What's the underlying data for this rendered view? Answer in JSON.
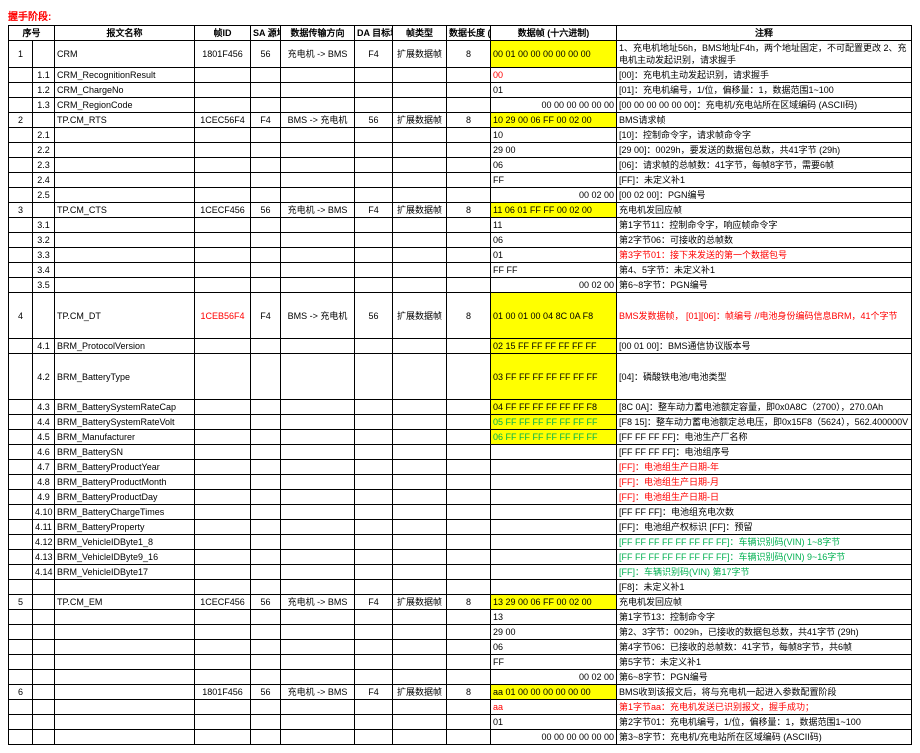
{
  "title": "握手阶段:",
  "headers": {
    "seq": "序号",
    "name": "报文名称",
    "fid": "帧ID",
    "sa": "SA\n源地址",
    "dir": "数据传输方向",
    "da": "DA\n目标地址",
    "ftype": "帧类型",
    "len": "数据长度\n(字节)",
    "hex": "数据帧\n(十六进制)",
    "note": "注释"
  },
  "rows": [
    {
      "seq": "1",
      "sub": "",
      "name": "CRM",
      "fid": "1801F456",
      "sa": "56",
      "dir": "充电机 -> BMS",
      "da": "F4",
      "ftype": "扩展数据帧",
      "len": "8",
      "hex": "00 01 00 00 00 00 00 00",
      "hexHl": "yellow",
      "note": "1、充电机地址56h，BMS地址F4h，两个地址固定，不可配置更改\n2、充电机主动发起识别，请求握手"
    },
    {
      "seq": "",
      "sub": "1.1",
      "name": "CRM_RecognitionResult",
      "fid": "",
      "sa": "",
      "dir": "",
      "da": "",
      "ftype": "",
      "len": "",
      "hex": "00",
      "hexRed": true,
      "note": "[00]：充电机主动发起识别，请求握手"
    },
    {
      "seq": "",
      "sub": "1.2",
      "name": "CRM_ChargeNo",
      "fid": "",
      "sa": "",
      "dir": "",
      "da": "",
      "ftype": "",
      "len": "",
      "hex": "01",
      "note": "[01]：充电机编号，1/位，偏移量：1，数据范围1~100"
    },
    {
      "seq": "",
      "sub": "1.3",
      "name": "CRM_RegionCode",
      "fid": "",
      "sa": "",
      "dir": "",
      "da": "",
      "ftype": "",
      "len": "",
      "hex": "00 00 00 00 00 00",
      "hexR": true,
      "note": "[00 00 00 00 00 00]：充电机/充电站所在区域编码 (ASCII码)"
    },
    {
      "seq": "2",
      "sub": "",
      "name": "TP.CM_RTS",
      "fid": "1CEC56F4",
      "sa": "F4",
      "dir": "BMS -> 充电机",
      "da": "56",
      "ftype": "扩展数据帧",
      "len": "8",
      "hex": "10 29 00 06 FF 00 02 00",
      "hexHl": "yellow",
      "note": "BMS请求帧"
    },
    {
      "seq": "",
      "sub": "2.1",
      "name": "",
      "fid": "",
      "sa": "",
      "dir": "",
      "da": "",
      "ftype": "",
      "len": "",
      "hex": "10",
      "note": "[10]：控制命令字，请求帧命令字"
    },
    {
      "seq": "",
      "sub": "2.2",
      "name": "",
      "fid": "",
      "sa": "",
      "dir": "",
      "da": "",
      "ftype": "",
      "len": "",
      "hex": "29 00",
      "note": "[29 00]：0029h，要发送的数据包总数，共41字节 (29h)"
    },
    {
      "seq": "",
      "sub": "2.3",
      "name": "",
      "fid": "",
      "sa": "",
      "dir": "",
      "da": "",
      "ftype": "",
      "len": "",
      "hex": "06",
      "note": "[06]：请求帧的总帧数：41字节，每帧8字节，需要6帧"
    },
    {
      "seq": "",
      "sub": "2.4",
      "name": "",
      "fid": "",
      "sa": "",
      "dir": "",
      "da": "",
      "ftype": "",
      "len": "",
      "hex": "FF",
      "note": "[FF]：未定义补1"
    },
    {
      "seq": "",
      "sub": "2.5",
      "name": "",
      "fid": "",
      "sa": "",
      "dir": "",
      "da": "",
      "ftype": "",
      "len": "",
      "hex": "00 02 00",
      "hexR": true,
      "note": "[00 02 00]：PGN编号"
    },
    {
      "seq": "3",
      "sub": "",
      "name": "TP.CM_CTS",
      "fid": "1CECF456",
      "sa": "56",
      "dir": "充电机 -> BMS",
      "da": "F4",
      "ftype": "扩展数据帧",
      "len": "8",
      "hex": "11 06 01 FF FF 00 02 00",
      "hexHl": "yellow",
      "note": "充电机发回应帧"
    },
    {
      "seq": "",
      "sub": "3.1",
      "name": "",
      "fid": "",
      "sa": "",
      "dir": "",
      "da": "",
      "ftype": "",
      "len": "",
      "hex": "11",
      "note": "第1字节11：控制命令字，响应帧命令字"
    },
    {
      "seq": "",
      "sub": "3.2",
      "name": "",
      "fid": "",
      "sa": "",
      "dir": "",
      "da": "",
      "ftype": "",
      "len": "",
      "hex": "06",
      "note": "第2字节06：可接收的总帧数"
    },
    {
      "seq": "",
      "sub": "3.3",
      "name": "",
      "fid": "",
      "sa": "",
      "dir": "",
      "da": "",
      "ftype": "",
      "len": "",
      "hex": "01",
      "note": "第3字节01：接下来发送的第一个数据包号",
      "noteRed": true
    },
    {
      "seq": "",
      "sub": "3.4",
      "name": "",
      "fid": "",
      "sa": "",
      "dir": "",
      "da": "",
      "ftype": "",
      "len": "",
      "hex": "FF FF",
      "note": "第4、5字节：未定义补1"
    },
    {
      "seq": "",
      "sub": "3.5",
      "name": "",
      "fid": "",
      "sa": "",
      "dir": "",
      "da": "",
      "ftype": "",
      "len": "",
      "hex": "00 02 00",
      "hexR": true,
      "note": "第6~8字节：PGN编号"
    },
    {
      "seq": "4",
      "sub": "",
      "name": "TP.CM_DT",
      "fid": "1CEB56F4",
      "fidRed": true,
      "sa": "F4",
      "dir": "BMS -> 充电机",
      "da": "56",
      "ftype": "扩展数据帧",
      "len": "8",
      "hex": "01 00 01 00 04 8C 0A F8",
      "hexHl": "yellow",
      "note": "BMS发数据帧，\n[01][06]：帧编号    //电池身份编码信息BRM，41个字节",
      "noteRed": true,
      "tall": true
    },
    {
      "seq": "",
      "sub": "4.1",
      "name": "BRM_ProtocolVersion",
      "fid": "",
      "sa": "",
      "dir": "",
      "da": "",
      "ftype": "",
      "len": "",
      "hex": "02 15 FF FF FF FF FF FF",
      "hexHl": "yellow",
      "note": "[00 01 00]：BMS通信协议版本号"
    },
    {
      "seq": "",
      "sub": "4.2",
      "name": "BRM_BatteryType",
      "fid": "",
      "sa": "",
      "dir": "",
      "da": "",
      "ftype": "",
      "len": "",
      "hex": "03 FF FF FF FF FF FF FF",
      "hexHl": "yellow",
      "note": "[04]：磷酸铁电池/电池类型",
      "tall": true
    },
    {
      "seq": "",
      "sub": "4.3",
      "name": "BRM_BatterySystemRateCap",
      "fid": "",
      "sa": "",
      "dir": "",
      "da": "",
      "ftype": "",
      "len": "",
      "hex": "04 FF FF FF FF FF FF F8",
      "hexHl": "yellow",
      "note": "[8C 0A]：整车动力蓄电池额定容量，即0x0A8C（2700），270.0Ah"
    },
    {
      "seq": "",
      "sub": "4.4",
      "name": "BRM_BatterySystemRateVolt",
      "fid": "",
      "sa": "",
      "dir": "",
      "da": "",
      "ftype": "",
      "len": "",
      "hex": "05 FF FF FF FF FF FF FF",
      "hexHl": "yellow",
      "hexGreen": true,
      "note": "[F8 15]：整车动力蓄电池额定总电压，即0x15F8（5624），562.400000V"
    },
    {
      "seq": "",
      "sub": "4.5",
      "name": "BRM_Manufacturer",
      "fid": "",
      "sa": "",
      "dir": "",
      "da": "",
      "ftype": "",
      "len": "",
      "hex": "06 FF FF FF FF FF FF FF",
      "hexHl": "yellow",
      "hexGreen": true,
      "note": "[FF FF FF FF]：电池生产厂名称"
    },
    {
      "seq": "",
      "sub": "4.6",
      "name": "BRM_BatterySN",
      "fid": "",
      "sa": "",
      "dir": "",
      "da": "",
      "ftype": "",
      "len": "",
      "hex": "",
      "note": "[FF FF FF FF]：电池组序号"
    },
    {
      "seq": "",
      "sub": "4.7",
      "name": "BRM_BatteryProductYear",
      "fid": "",
      "sa": "",
      "dir": "",
      "da": "",
      "ftype": "",
      "len": "",
      "hex": "",
      "note": "[FF]：电池组生产日期-年",
      "noteRed": true
    },
    {
      "seq": "",
      "sub": "4.8",
      "name": "BRM_BatteryProductMonth",
      "fid": "",
      "sa": "",
      "dir": "",
      "da": "",
      "ftype": "",
      "len": "",
      "hex": "",
      "note": "[FF]：电池组生产日期-月",
      "noteRed": true
    },
    {
      "seq": "",
      "sub": "4.9",
      "name": "BRM_BatteryProductDay",
      "fid": "",
      "sa": "",
      "dir": "",
      "da": "",
      "ftype": "",
      "len": "",
      "hex": "",
      "note": "[FF]：电池组生产日期-日",
      "noteRed": true
    },
    {
      "seq": "",
      "sub": "4.10",
      "name": "BRM_BatteryChargeTimes",
      "fid": "",
      "sa": "",
      "dir": "",
      "da": "",
      "ftype": "",
      "len": "",
      "hex": "",
      "note": "[FF FF FF]：电池组充电次数"
    },
    {
      "seq": "",
      "sub": "4.11",
      "name": "BRM_BatteryProperty",
      "fid": "",
      "sa": "",
      "dir": "",
      "da": "",
      "ftype": "",
      "len": "",
      "hex": "",
      "note": "[FF]：电池组产权标识\n[FF]：预留"
    },
    {
      "seq": "",
      "sub": "4.12",
      "name": "BRM_VehicleIDByte1_8",
      "fid": "",
      "sa": "",
      "dir": "",
      "da": "",
      "ftype": "",
      "len": "",
      "hex": "",
      "note": "[FF FF FF FF FF FF FF FF]：车辆识别码(VIN)  1~8字节",
      "noteGreen": true
    },
    {
      "seq": "",
      "sub": "4.13",
      "name": "BRM_VehicleIDByte9_16",
      "fid": "",
      "sa": "",
      "dir": "",
      "da": "",
      "ftype": "",
      "len": "",
      "hex": "",
      "note": "[FF FF FF FF FF FF FF FF]：车辆识别码(VIN)  9~16字节",
      "noteGreen": true
    },
    {
      "seq": "",
      "sub": "4.14",
      "name": "BRM_VehicleIDByte17",
      "fid": "",
      "sa": "",
      "dir": "",
      "da": "",
      "ftype": "",
      "len": "",
      "hex": "",
      "note": "[FF]：车辆识别码(VIN)  第17字节",
      "noteGreen": true
    },
    {
      "seq": "",
      "sub": "",
      "name": "",
      "fid": "",
      "sa": "",
      "dir": "",
      "da": "",
      "ftype": "",
      "len": "",
      "hex": "",
      "note": "[F8]：未定义补1"
    },
    {
      "seq": "5",
      "sub": "",
      "name": "TP.CM_EM",
      "fid": "1CECF456",
      "sa": "56",
      "dir": "充电机 -> BMS",
      "da": "F4",
      "ftype": "扩展数据帧",
      "len": "8",
      "hex": "13 29 00 06 FF 00 02 00",
      "hexHl": "yellow",
      "note": "充电机发回应帧"
    },
    {
      "seq": "",
      "sub": "",
      "name": "",
      "fid": "",
      "sa": "",
      "dir": "",
      "da": "",
      "ftype": "",
      "len": "",
      "hex": "13",
      "note": "第1字节13：控制命令字"
    },
    {
      "seq": "",
      "sub": "",
      "name": "",
      "fid": "",
      "sa": "",
      "dir": "",
      "da": "",
      "ftype": "",
      "len": "",
      "hex": "29 00",
      "note": "第2、3字节：0029h，已接收的数据包总数，共41字节 (29h)"
    },
    {
      "seq": "",
      "sub": "",
      "name": "",
      "fid": "",
      "sa": "",
      "dir": "",
      "da": "",
      "ftype": "",
      "len": "",
      "hex": "06",
      "note": "第4字节06：已接收的总帧数：41字节，每帧8字节，共6帧"
    },
    {
      "seq": "",
      "sub": "",
      "name": "",
      "fid": "",
      "sa": "",
      "dir": "",
      "da": "",
      "ftype": "",
      "len": "",
      "hex": "FF",
      "note": "第5字节：未定义补1"
    },
    {
      "seq": "",
      "sub": "",
      "name": "",
      "fid": "",
      "sa": "",
      "dir": "",
      "da": "",
      "ftype": "",
      "len": "",
      "hex": "00 02 00",
      "hexR": true,
      "note": "第6~8字节：PGN编号"
    },
    {
      "seq": "6",
      "sub": "",
      "name": "",
      "fid": "1801F456",
      "sa": "56",
      "dir": "充电机 -> BMS",
      "da": "F4",
      "ftype": "扩展数据帧",
      "len": "8",
      "hex": "aa 01 00 00 00 00 00 00",
      "hexHl": "yellow",
      "note": "BMS收到该报文后，将与充电机一起进入参数配置阶段"
    },
    {
      "seq": "",
      "sub": "",
      "name": "",
      "fid": "",
      "sa": "",
      "dir": "",
      "da": "",
      "ftype": "",
      "len": "",
      "hex": "aa",
      "hexRed": true,
      "note": "第1字节aa：充电机发送已识别报文，握手成功；",
      "noteRed": true
    },
    {
      "seq": "",
      "sub": "",
      "name": "",
      "fid": "",
      "sa": "",
      "dir": "",
      "da": "",
      "ftype": "",
      "len": "",
      "hex": "01",
      "note": "第2字节01：充电机编号，1/位，偏移量：1，数据范围1~100"
    },
    {
      "seq": "",
      "sub": "",
      "name": "",
      "fid": "",
      "sa": "",
      "dir": "",
      "da": "",
      "ftype": "",
      "len": "",
      "hex": "00 00 00 00 00 00",
      "hexR": true,
      "note": "第3~8字节：充电机/充电站所在区域编码 (ASCII码)"
    }
  ]
}
